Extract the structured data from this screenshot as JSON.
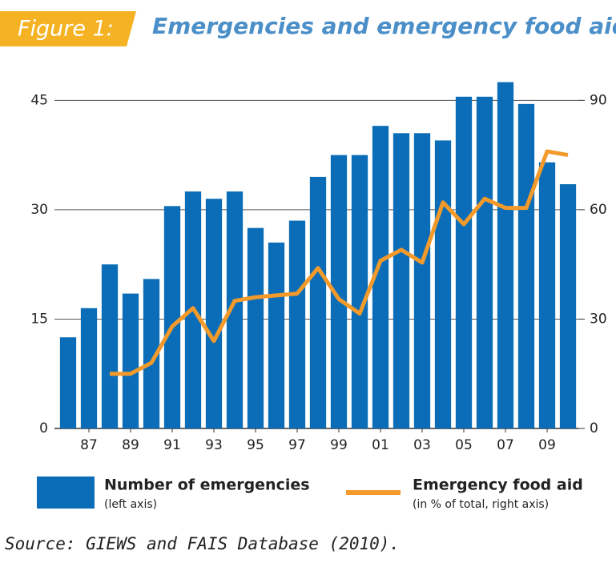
{
  "chart_data": {
    "type": "bar-line",
    "figure_label": "Figure 1:",
    "title": "Emergencies and emergency food aid",
    "source": "Source: GIEWS and FAIS Database (2010).",
    "categories": [
      null,
      "87",
      null,
      "89",
      null,
      "91",
      null,
      "93",
      null,
      "95",
      null,
      "97",
      null,
      "99",
      null,
      "01",
      null,
      "03",
      null,
      "05",
      null,
      "07",
      null,
      "09",
      null
    ],
    "series": [
      {
        "name": "Number of emergencies",
        "note": "(left axis)",
        "type": "bar",
        "color": "#0b6db7",
        "values": [
          12.5,
          16.5,
          22.5,
          18.5,
          20.5,
          30.5,
          32.5,
          31.5,
          32.5,
          27.5,
          25.5,
          28.5,
          34.5,
          37.5,
          37.5,
          41.5,
          40.5,
          40.5,
          39.5,
          45.5,
          45.5,
          47.5,
          44.5,
          36.5,
          33.5
        ]
      },
      {
        "name": "Emergency food aid",
        "note": "(in %  of total, right axis)",
        "type": "line",
        "axis": "y2",
        "color": "#f39a2b",
        "values": [
          null,
          null,
          15,
          15,
          18,
          28,
          33,
          24,
          35,
          36,
          36.5,
          37,
          44,
          35.5,
          31.5,
          46,
          49,
          45.5,
          62,
          56,
          63,
          60.5,
          60.5,
          76,
          75
        ]
      }
    ],
    "ylim": [
      0,
      48
    ],
    "yticks": [
      0,
      15,
      30,
      45
    ],
    "y2lim": [
      0,
      96
    ],
    "y2ticks": [
      0,
      30,
      60,
      90
    ],
    "grid": true
  }
}
